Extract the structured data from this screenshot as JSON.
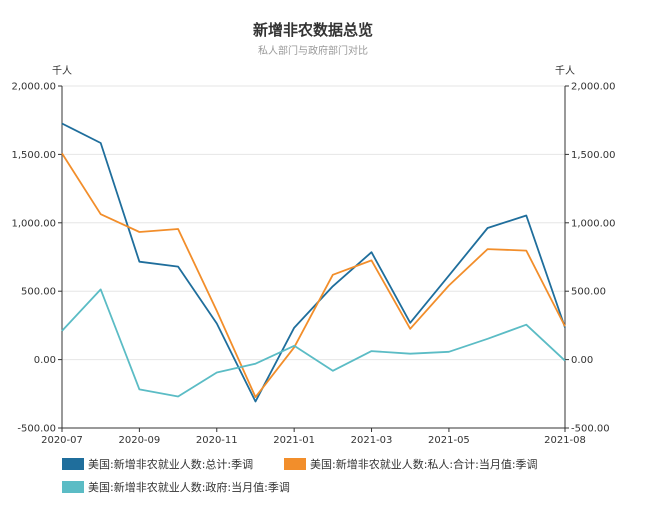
{
  "title": "新增非农数据总览",
  "subtitle": "私人部门与政府部门对比",
  "left_unit": "千人",
  "right_unit": "千人",
  "chart_data": {
    "type": "line",
    "title": "新增非农数据总览",
    "subtitle": "私人部门与政府部门对比",
    "ylim": [
      -500,
      2000
    ],
    "y_ticks": [
      "2,000.00",
      "1,500.00",
      "1,000.00",
      "500.00",
      "0.00",
      "-500.00"
    ],
    "y_tick_values": [
      2000,
      1500,
      1000,
      500,
      0,
      -500
    ],
    "x": [
      "2020-07",
      "2020-08",
      "2020-09",
      "2020-10",
      "2020-11",
      "2020-12",
      "2021-01",
      "2021-02",
      "2021-03",
      "2021-04",
      "2021-05",
      "2021-06",
      "2021-07",
      "2021-08"
    ],
    "x_tick_labels": [
      "2020-07",
      "2020-09",
      "2020-11",
      "2021-01",
      "2021-03",
      "2021-05",
      "2021-08"
    ],
    "x_tick_indices": [
      0,
      2,
      4,
      6,
      8,
      10,
      13
    ],
    "grid": true,
    "legend_position": "bottom",
    "series": [
      {
        "name": "美国:新增非农就业人数:总计:季调",
        "color": "#1f6e9c",
        "axis": "left",
        "values": [
          1726,
          1583,
          716,
          680,
          264,
          -306,
          233,
          536,
          785,
          269,
          614,
          962,
          1053,
          235
        ]
      },
      {
        "name": "美国:新增非农就业人数:私人:合计:当月值:季调",
        "color": "#f28e2b",
        "axis": "right",
        "values": [
          1507,
          1063,
          933,
          955,
          356,
          -274,
          90,
          620,
          725,
          225,
          542,
          808,
          797,
          243
        ]
      },
      {
        "name": "美国:新增非农就业人数:政府:当月值:季调",
        "color": "#5bbcc5",
        "axis": "left",
        "values": [
          210,
          513,
          -218,
          -270,
          -94,
          -30,
          101,
          -82,
          62,
          43,
          57,
          152,
          255,
          -8
        ]
      }
    ]
  }
}
